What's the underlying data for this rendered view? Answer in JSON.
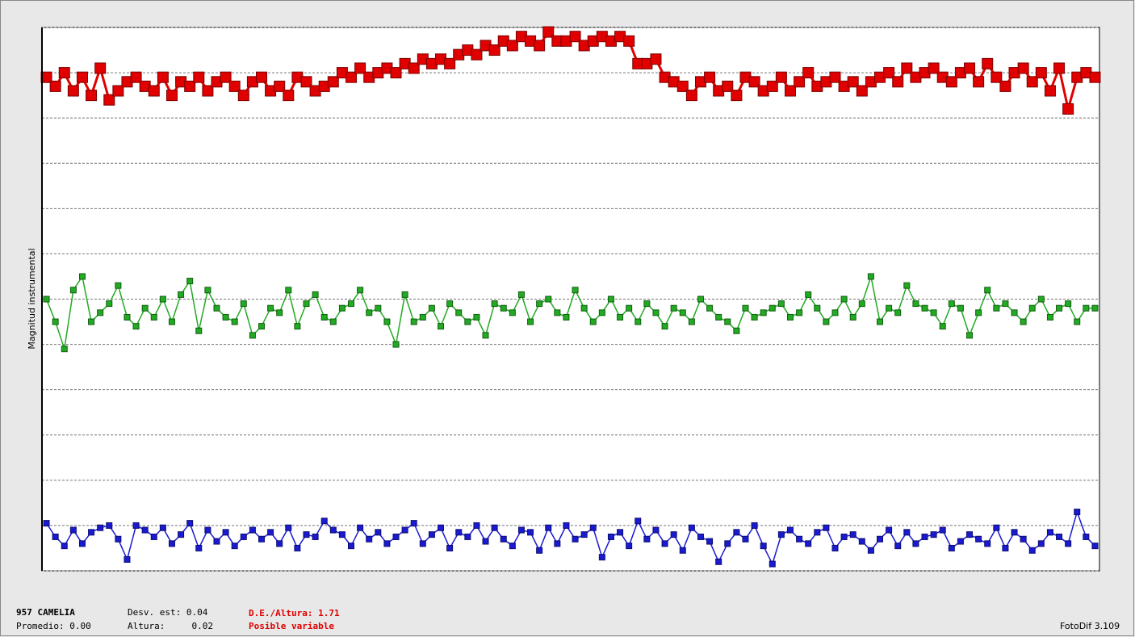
{
  "chart_data": {
    "type": "line",
    "y_label": "Magnitud instrumental",
    "ylim": [
      0,
      12
    ],
    "yticks": [
      0,
      1,
      2,
      3,
      4,
      5,
      6,
      7,
      8,
      9,
      10,
      11,
      12
    ],
    "grid": true,
    "series": [
      {
        "color": "#e00000",
        "values": [
          10.9,
          10.7,
          11.0,
          10.6,
          10.9,
          10.5,
          11.1,
          10.4,
          10.6,
          10.8,
          10.9,
          10.7,
          10.6,
          10.9,
          10.5,
          10.8,
          10.7,
          10.9,
          10.6,
          10.8,
          10.9,
          10.7,
          10.5,
          10.8,
          10.9,
          10.6,
          10.7,
          10.5,
          10.9,
          10.8,
          10.6,
          10.7,
          10.8,
          11.0,
          10.9,
          11.1,
          10.9,
          11.0,
          11.1,
          11.0,
          11.2,
          11.1,
          11.3,
          11.2,
          11.3,
          11.2,
          11.4,
          11.5,
          11.4,
          11.6,
          11.5,
          11.7,
          11.6,
          11.8,
          11.7,
          11.6,
          11.9,
          11.7,
          11.7,
          11.8,
          11.6,
          11.7,
          11.8,
          11.7,
          11.8,
          11.7,
          11.2,
          11.2,
          11.3,
          10.9,
          10.8,
          10.7,
          10.5,
          10.8,
          10.9,
          10.6,
          10.7,
          10.5,
          10.9,
          10.8,
          10.6,
          10.7,
          10.9,
          10.6,
          10.8,
          11.0,
          10.7,
          10.8,
          10.9,
          10.7,
          10.8,
          10.6,
          10.8,
          10.9,
          11.0,
          10.8,
          11.1,
          10.9,
          11.0,
          11.1,
          10.9,
          10.8,
          11.0,
          11.1,
          10.8,
          11.2,
          10.9,
          10.7,
          11.0,
          11.1,
          10.8,
          11.0,
          10.6,
          11.1,
          10.2,
          10.9,
          11.0,
          10.9
        ]
      },
      {
        "color": "#22aa22",
        "values": [
          6.0,
          5.5,
          4.9,
          6.2,
          6.5,
          5.5,
          5.7,
          5.9,
          6.3,
          5.6,
          5.4,
          5.8,
          5.6,
          6.0,
          5.5,
          6.1,
          6.4,
          5.3,
          6.2,
          5.8,
          5.6,
          5.5,
          5.9,
          5.2,
          5.4,
          5.8,
          5.7,
          6.2,
          5.4,
          5.9,
          6.1,
          5.6,
          5.5,
          5.8,
          5.9,
          6.2,
          5.7,
          5.8,
          5.5,
          5.0,
          6.1,
          5.5,
          5.6,
          5.8,
          5.4,
          5.9,
          5.7,
          5.5,
          5.6,
          5.2,
          5.9,
          5.8,
          5.7,
          6.1,
          5.5,
          5.9,
          6.0,
          5.7,
          5.6,
          6.2,
          5.8,
          5.5,
          5.7,
          6.0,
          5.6,
          5.8,
          5.5,
          5.9,
          5.7,
          5.4,
          5.8,
          5.7,
          5.5,
          6.0,
          5.8,
          5.6,
          5.5,
          5.3,
          5.8,
          5.6,
          5.7,
          5.8,
          5.9,
          5.6,
          5.7,
          6.1,
          5.8,
          5.5,
          5.7,
          6.0,
          5.6,
          5.9,
          6.5,
          5.5,
          5.8,
          5.7,
          6.3,
          5.9,
          5.8,
          5.7,
          5.4,
          5.9,
          5.8,
          5.2,
          5.7,
          6.2,
          5.8,
          5.9,
          5.7,
          5.5,
          5.8,
          6.0,
          5.6,
          5.8,
          5.9,
          5.5,
          5.8,
          5.8
        ]
      },
      {
        "color": "#1a1ad0",
        "values": [
          1.05,
          0.75,
          0.55,
          0.9,
          0.6,
          0.85,
          0.95,
          1.0,
          0.7,
          0.25,
          1.0,
          0.9,
          0.75,
          0.95,
          0.6,
          0.8,
          1.05,
          0.5,
          0.9,
          0.65,
          0.85,
          0.55,
          0.75,
          0.9,
          0.7,
          0.85,
          0.6,
          0.95,
          0.5,
          0.8,
          0.75,
          1.1,
          0.9,
          0.8,
          0.55,
          0.95,
          0.7,
          0.85,
          0.6,
          0.75,
          0.9,
          1.05,
          0.6,
          0.8,
          0.95,
          0.5,
          0.85,
          0.75,
          1.0,
          0.65,
          0.95,
          0.7,
          0.55,
          0.9,
          0.85,
          0.45,
          0.95,
          0.6,
          1.0,
          0.7,
          0.8,
          0.95,
          0.3,
          0.75,
          0.85,
          0.55,
          1.1,
          0.7,
          0.9,
          0.6,
          0.8,
          0.45,
          0.95,
          0.75,
          0.65,
          0.2,
          0.6,
          0.85,
          0.7,
          1.0,
          0.55,
          0.15,
          0.8,
          0.9,
          0.7,
          0.6,
          0.85,
          0.95,
          0.5,
          0.75,
          0.8,
          0.65,
          0.45,
          0.7,
          0.9,
          0.55,
          0.85,
          0.6,
          0.75,
          0.8,
          0.9,
          0.5,
          0.65,
          0.8,
          0.7,
          0.6,
          0.95,
          0.5,
          0.85,
          0.7,
          0.45,
          0.6,
          0.85,
          0.75,
          0.6,
          1.3,
          0.75,
          0.55
        ]
      }
    ]
  },
  "footer": {
    "star": "957 CAMELIA",
    "mean": "Promedio: 0.00",
    "std": "Desv. est: 0.04",
    "height": "Altura:     0.02",
    "ratio": "D.E./Altura: 1.71",
    "verdict": "Posible variable",
    "software": "FotoDif 3.109"
  }
}
